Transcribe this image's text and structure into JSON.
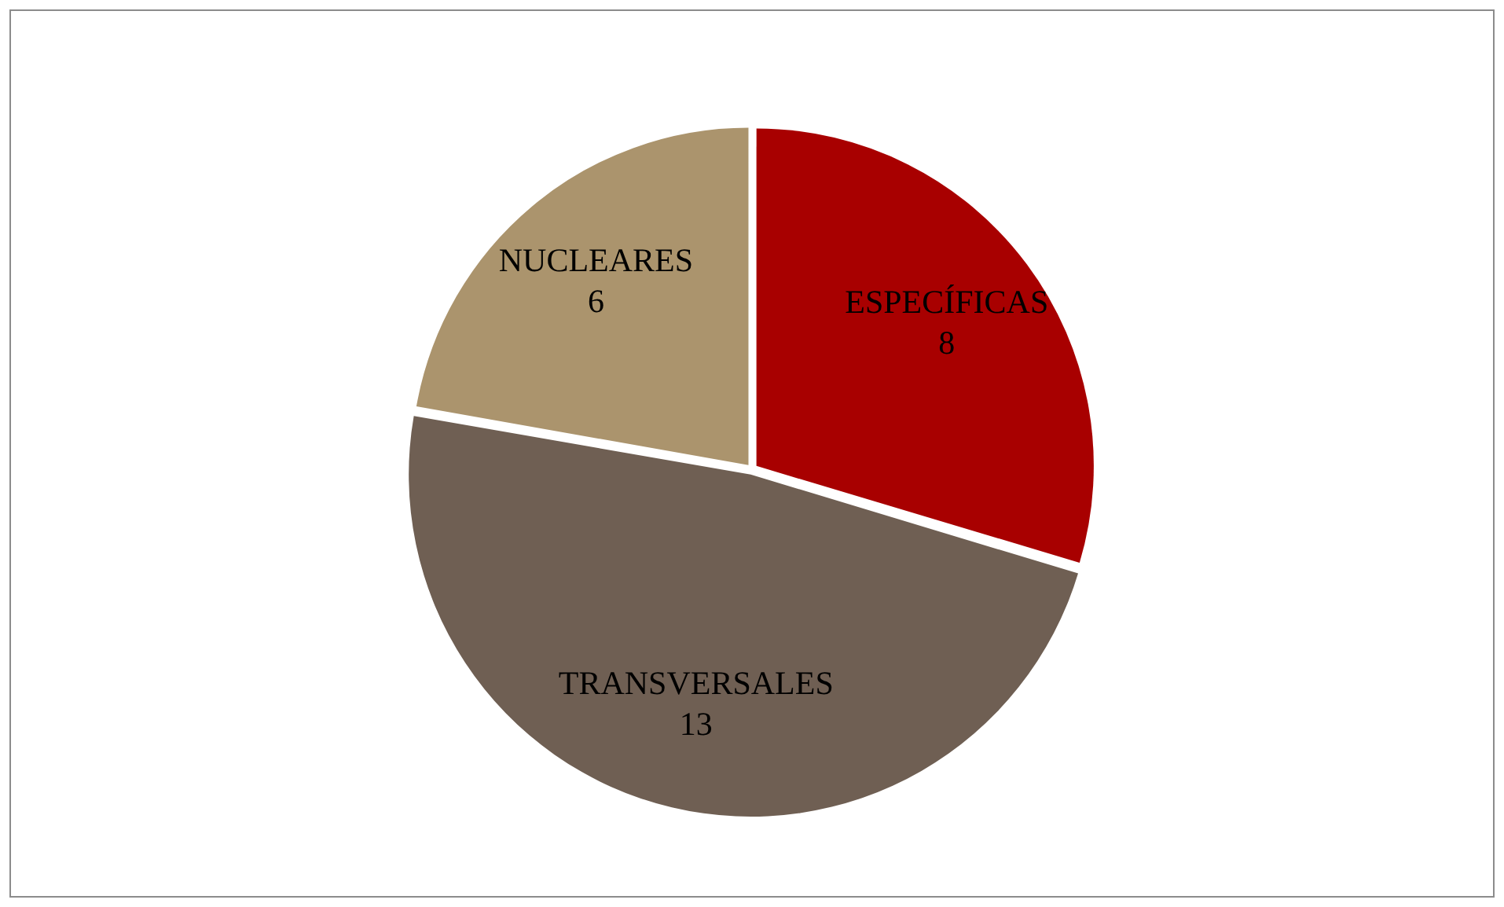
{
  "chart_data": {
    "type": "pie",
    "categories": [
      "ESPECÍFICAS",
      "TRANSVERSALES",
      "NUCLEARES"
    ],
    "values": [
      8,
      13,
      6
    ],
    "colors": [
      "#a80000",
      "#6f5f53",
      "#ab946d"
    ],
    "data_labels": true,
    "legend": false
  }
}
